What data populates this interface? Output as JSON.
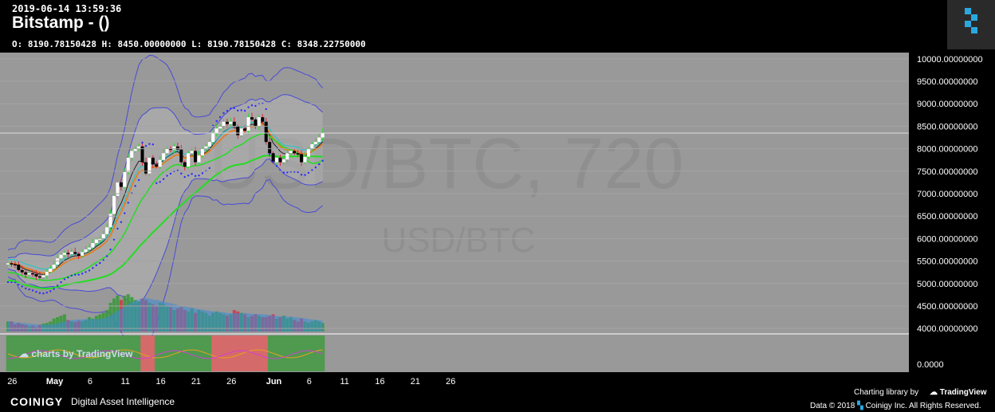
{
  "header": {
    "timestamp": "2019-06-14 13:59:36",
    "pair_title": "Bitstamp -  ()",
    "ohlc_text": "O: 8190.78150428 H: 8450.00000000 L: 8190.78150428 C: 8348.22750000"
  },
  "watermark": {
    "main": "USD/BTC, 720",
    "sub": "USD/BTC",
    "tv": "charts by TradingView"
  },
  "footer": {
    "brand": "COINIGY",
    "tagline": "Digital Asset Intelligence",
    "charting_lib": "Charting library by",
    "tv": "TradingView",
    "copyright": "Data © 2018",
    "copyright2": "Coinigy Inc. All Rights Reserved."
  },
  "colors": {
    "bg": "#999999",
    "up": "#ffffff",
    "down": "#000000",
    "vol_up": "#3a9a3a",
    "vol_down": "#d23a4a",
    "band": "#4a4ad8",
    "ema_orange": "#e87a18",
    "green_line": "#22dd22",
    "psar": "#2a2aff",
    "vol_ma": "#3a8ad8"
  },
  "chart_data": {
    "type": "candlestick",
    "title": "",
    "x_tick_labels": [
      "26",
      "May",
      "6",
      "11",
      "16",
      "21",
      "26",
      "Jun",
      "6",
      "11",
      "16",
      "21",
      "26"
    ],
    "x_tick_days": [
      -5,
      1,
      6,
      11,
      16,
      21,
      26,
      32,
      37,
      42,
      47,
      52,
      57
    ],
    "y_tick_labels": [
      "10000.00000000",
      "9500.00000000",
      "9000.00000000",
      "8500.00000000",
      "8000.00000000",
      "7500.00000000",
      "7000.00000000",
      "6500.00000000",
      "6000.00000000",
      "5500.00000000",
      "5000.00000000",
      "4500.00000000",
      "4000.00000000"
    ],
    "ylim": [
      3950,
      10050
    ],
    "last_price": 8348.2275,
    "oscillator_tick_label": "0.0000",
    "closes": [
      5450,
      5430,
      5420,
      5300,
      5250,
      5200,
      5230,
      5210,
      5160,
      5140,
      5180,
      5260,
      5330,
      5420,
      5560,
      5640,
      5680,
      5660,
      5700,
      5660,
      5620,
      5700,
      5760,
      5800,
      5900,
      5980,
      6000,
      6100,
      6250,
      6550,
      6950,
      7250,
      7150,
      7480,
      7800,
      7950,
      8000,
      8050,
      7700,
      7450,
      7800,
      7650,
      7600,
      7750,
      7900,
      8000,
      7980,
      8050,
      7980,
      7700,
      7600,
      7900,
      7950,
      7700,
      7850,
      8000,
      8050,
      8150,
      8350,
      8450,
      8500,
      8600,
      8550,
      8600,
      8500,
      8300,
      8450,
      8400,
      8700,
      8650,
      8500,
      8700,
      8600,
      8150,
      7900,
      7700,
      7800,
      7700,
      7760,
      7900,
      7950,
      7900,
      7880,
      7700,
      7820,
      8000,
      8100,
      8150,
      8250,
      8348.2275
    ],
    "volume_pct": [
      14,
      14,
      10,
      12,
      10,
      9,
      7,
      8,
      6,
      9,
      11,
      12,
      14,
      18,
      20,
      22,
      24,
      16,
      14,
      13,
      15,
      14,
      16,
      20,
      18,
      22,
      24,
      26,
      30,
      40,
      46,
      50,
      44,
      50,
      52,
      48,
      44,
      42,
      46,
      44,
      40,
      38,
      36,
      40,
      38,
      36,
      34,
      30,
      32,
      34,
      30,
      28,
      32,
      26,
      30,
      28,
      26,
      22,
      26,
      28,
      26,
      24,
      22,
      24,
      30,
      28,
      26,
      24,
      20,
      22,
      24,
      22,
      20,
      20,
      22,
      24,
      18,
      20,
      22,
      18,
      20,
      16,
      14,
      18,
      14,
      12,
      14,
      16,
      14,
      12
    ],
    "oscillator_regime": [
      "g",
      "g",
      "g",
      "g",
      "g",
      "g",
      "g",
      "g",
      "g",
      "g",
      "g",
      "g",
      "g",
      "g",
      "g",
      "g",
      "g",
      "g",
      "g",
      "g",
      "g",
      "g",
      "g",
      "g",
      "g",
      "g",
      "g",
      "g",
      "g",
      "g",
      "g",
      "g",
      "g",
      "g",
      "g",
      "g",
      "g",
      "g",
      "r",
      "r",
      "r",
      "r",
      "g",
      "g",
      "g",
      "g",
      "g",
      "g",
      "g",
      "g",
      "g",
      "g",
      "g",
      "g",
      "g",
      "g",
      "g",
      "g",
      "r",
      "r",
      "r",
      "r",
      "r",
      "r",
      "r",
      "r",
      "r",
      "r",
      "r",
      "r",
      "r",
      "r",
      "r",
      "r",
      "g",
      "g",
      "g",
      "g",
      "g",
      "g",
      "g",
      "g",
      "g",
      "g",
      "g",
      "g",
      "g",
      "g",
      "g",
      "g"
    ]
  }
}
